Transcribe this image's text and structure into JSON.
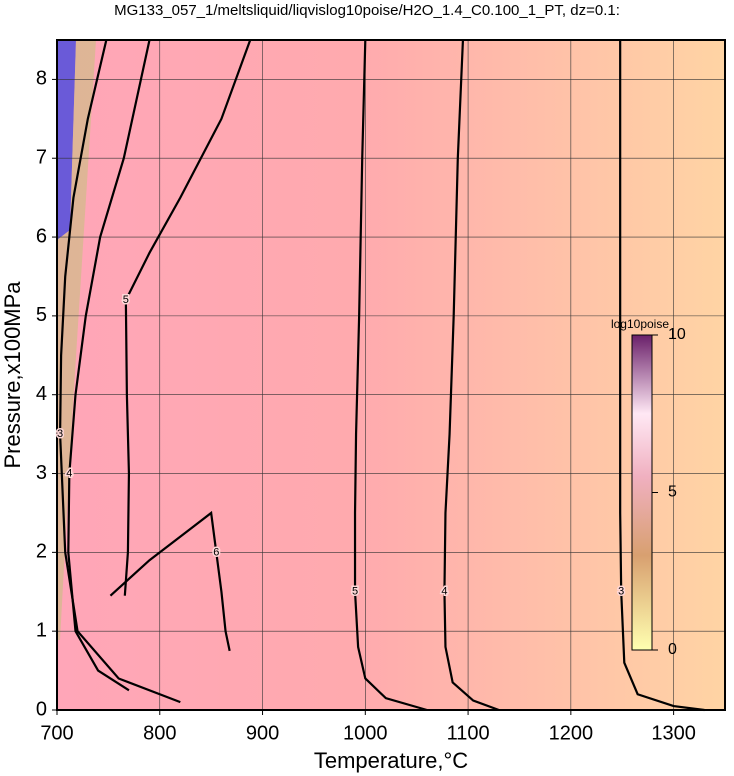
{
  "chart_data": {
    "type": "contour",
    "title": "MG133_057_1/meltsliquid/liqvislog10poise/H2O_1.4_C0.100_1_PT, dz=0.1:",
    "x_label": "Temperature,°C",
    "y_label": "Pressure,x100MPa",
    "xlim": [
      700,
      1350
    ],
    "ylim": [
      0,
      8.5
    ],
    "xticks": [
      700,
      800,
      900,
      1000,
      1100,
      1200,
      1300
    ],
    "yticks": [
      0,
      1,
      2,
      3,
      4,
      5,
      6,
      7,
      8
    ],
    "grid": true,
    "contours": [
      {
        "level": 5,
        "x": [
          1000,
          997,
          994,
          991,
          990,
          990,
          993,
          1000,
          1020,
          1060
        ],
        "y": [
          8.5,
          7,
          5,
          3.5,
          2.5,
          1.5,
          0.8,
          0.4,
          0.15,
          0
        ]
      },
      {
        "level": 4,
        "x": [
          1095,
          1090,
          1086,
          1082,
          1078,
          1077,
          1078,
          1085,
          1105,
          1130
        ],
        "y": [
          8.5,
          7,
          5,
          3.5,
          2.5,
          1.5,
          0.8,
          0.35,
          0.12,
          0
        ]
      },
      {
        "level": 3,
        "x": [
          1248,
          1248,
          1248,
          1248,
          1248,
          1249,
          1252,
          1265,
          1300,
          1330
        ],
        "y": [
          8.5,
          7,
          5,
          3.5,
          2.5,
          1.5,
          0.6,
          0.2,
          0.05,
          0
        ]
      },
      {
        "level": 6,
        "x": [
          752,
          790,
          830,
          850,
          855,
          860,
          864,
          868
        ],
        "y": [
          1.45,
          1.9,
          2.3,
          2.5,
          2.0,
          1.5,
          1.0,
          0.75
        ]
      },
      {
        "level": 5,
        "x": [
          888,
          860,
          820,
          790,
          767,
          768,
          770,
          769,
          766
        ],
        "y": [
          8.5,
          7.5,
          6.5,
          5.8,
          5.2,
          4,
          3,
          2,
          1.45
        ]
      },
      {
        "level": 4,
        "x": [
          790,
          765,
          742,
          728,
          718,
          712,
          711,
          718,
          740,
          770
        ],
        "y": [
          8.5,
          7,
          6,
          5,
          4,
          3,
          2,
          1,
          0.5,
          0.25
        ]
      },
      {
        "level": 3,
        "x": [
          748,
          730,
          716,
          708,
          704,
          703,
          708,
          720,
          760,
          820
        ],
        "y": [
          8.5,
          7.5,
          6.5,
          5.5,
          4.5,
          3.5,
          2,
          1,
          0.4,
          0.1
        ]
      }
    ],
    "colorbar": {
      "label": "log10poise",
      "lim": [
        0,
        10
      ],
      "ticks": [
        0,
        5,
        10
      ]
    }
  }
}
